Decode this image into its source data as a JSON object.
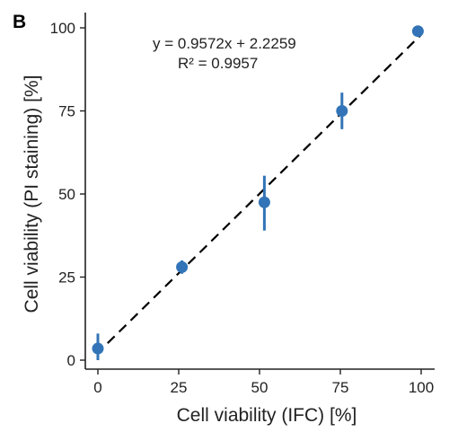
{
  "panel_label": "B",
  "colors": {
    "point": "#3274b7",
    "fit": "#000000",
    "axis": "#222222"
  },
  "chart_data": {
    "type": "scatter",
    "xlabel": "Cell viability (IFC) [%]",
    "ylabel": "Cell viability (PI staining)  [%]",
    "xlim": [
      0,
      100
    ],
    "ylim": [
      0,
      100
    ],
    "xticks": [
      0,
      25,
      50,
      75,
      100
    ],
    "yticks": [
      0,
      25,
      50,
      75,
      100
    ],
    "grid": false,
    "series": [
      {
        "points": [
          {
            "x": 0.0,
            "y": 3.5,
            "err_low": 0.0,
            "err_high": 8.0
          },
          {
            "x": 26.0,
            "y": 28.0,
            "err_low": 26.0,
            "err_high": 30.0
          },
          {
            "x": 51.5,
            "y": 47.5,
            "err_low": 39.0,
            "err_high": 55.5
          },
          {
            "x": 75.5,
            "y": 75.0,
            "err_low": 69.5,
            "err_high": 80.5
          },
          {
            "x": 99.0,
            "y": 99.0,
            "err_low": 99.0,
            "err_high": 99.0
          }
        ]
      }
    ],
    "fit": {
      "slope": 0.9572,
      "intercept": 2.2259,
      "x_range": [
        3,
        100
      ]
    },
    "annotations": {
      "equation": "y = 0.9572x + 2.2259",
      "r2": "R² = 0.9957"
    }
  }
}
